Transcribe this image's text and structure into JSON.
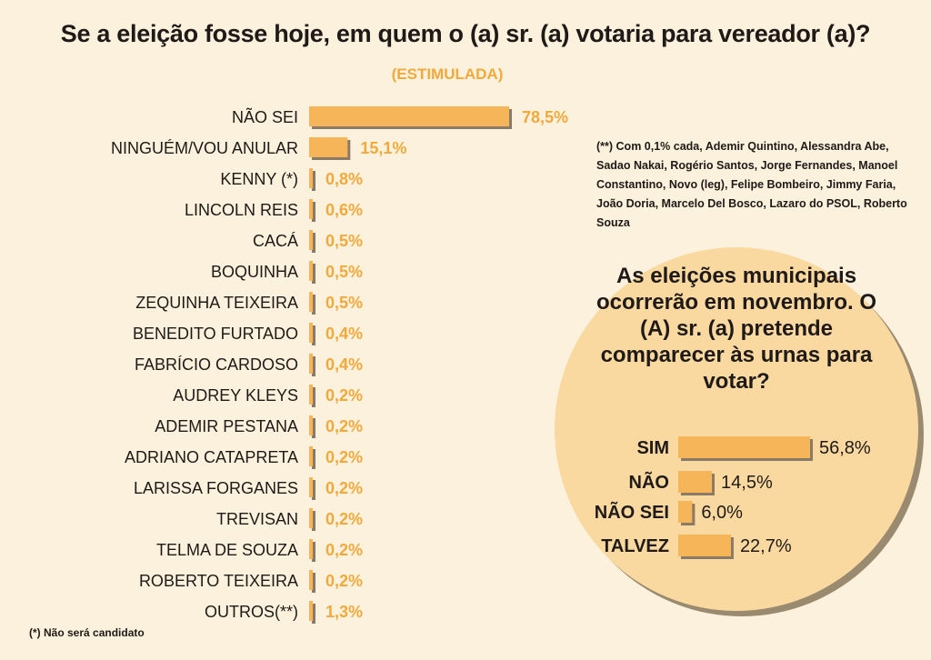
{
  "title": "Se a eleição fosse hoje, em quem o (a) sr. (a) votaria para vereador (a)?",
  "subtitle": "(ESTIMULADA)",
  "note": "(**) Com 0,1% cada, Ademir Quintino, Alessandra Abe, Sadao Nakai, Rogério Santos, Jorge Fernandes, Manoel Constantino, Novo (leg), Felipe Bombeiro, Jimmy Faria, João Doria, Marcelo Del Bosco, Lazaro do PSOL, Roberto Souza",
  "footnote": "(*) Não será candidato",
  "question": "As eleições municipais ocorrerão em novembro. O (A) sr. (a) pretende comparecer às urnas para votar?",
  "colors": {
    "bar": "#f7b55a",
    "bar_shadow": "#8a7a66",
    "value_text": "#f2a93b",
    "circle": "#f9d9a0"
  },
  "chart_data": [
    {
      "type": "bar",
      "orientation": "horizontal",
      "title": "Se a eleição fosse hoje, em quem o (a) sr. (a) votaria para vereador (a)?",
      "subtitle": "(ESTIMULADA)",
      "categories": [
        "NÃO SEI",
        "NINGUÉM/VOU ANULAR",
        "KENNY (*)",
        "LINCOLN REIS",
        "CACÁ",
        "BOQUINHA",
        "ZEQUINHA TEIXEIRA",
        "BENEDITO FURTADO",
        "FABRÍCIO CARDOSO",
        "AUDREY KLEYS",
        "ADEMIR PESTANA",
        "ADRIANO CATAPRETA",
        "LARISSA FORGANES",
        "TREVISAN",
        "TELMA DE SOUZA",
        "ROBERTO TEIXEIRA",
        "OUTROS(**)"
      ],
      "values": [
        78.5,
        15.1,
        0.8,
        0.6,
        0.5,
        0.5,
        0.5,
        0.4,
        0.4,
        0.2,
        0.2,
        0.2,
        0.2,
        0.2,
        0.2,
        0.2,
        1.3
      ],
      "labels": [
        "78,5%",
        "15,1%",
        "0,8%",
        "0,6%",
        "0,5%",
        "0,5%",
        "0,5%",
        "0,4%",
        "0,4%",
        "0,2%",
        "0,2%",
        "0,2%",
        "0,2%",
        "0,2%",
        "0,2%",
        "0,2%",
        "1,3%"
      ],
      "grid": false
    },
    {
      "type": "bar",
      "orientation": "horizontal",
      "title": "As eleições municipais ocorrerão em novembro. O (A) sr. (a) pretende comparecer às urnas para votar?",
      "categories": [
        "SIM",
        "NÃO",
        "NÃO SEI",
        "TALVEZ"
      ],
      "values": [
        56.8,
        14.5,
        6.0,
        22.7
      ],
      "labels": [
        "56,8%",
        "14,5%",
        "6,0%",
        "22,7%"
      ],
      "grid": false
    }
  ]
}
